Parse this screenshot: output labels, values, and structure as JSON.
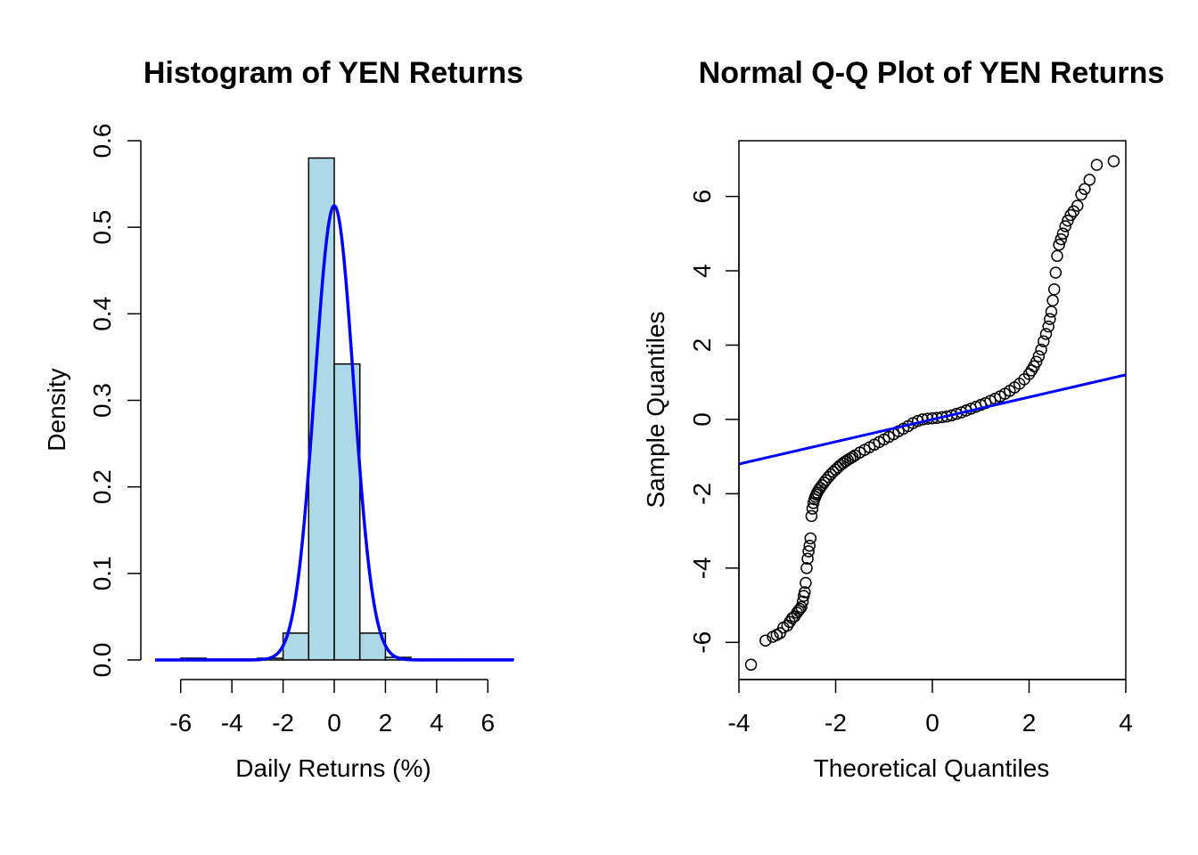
{
  "chart_data": [
    {
      "type": "bar",
      "subtype": "histogram-with-density-curve",
      "title": "Histogram of YEN Returns",
      "xlabel": "Daily Returns (%)",
      "ylabel": "Density",
      "xlim": [
        -7,
        7
      ],
      "ylim": [
        0,
        0.6
      ],
      "xticks": [
        -6,
        -4,
        -2,
        0,
        2,
        4,
        6
      ],
      "yticks": [
        0.0,
        0.1,
        0.2,
        0.3,
        0.4,
        0.5,
        0.6
      ],
      "xtick_labels": [
        "-6",
        "-4",
        "-2",
        "0",
        "2",
        "4",
        "6"
      ],
      "ytick_labels": [
        "0.0",
        "0.1",
        "0.2",
        "0.3",
        "0.4",
        "0.5",
        "0.6"
      ],
      "bins": [
        {
          "from": -6,
          "to": -5,
          "density": 0.002
        },
        {
          "from": -5,
          "to": -4,
          "density": 0.001
        },
        {
          "from": -4,
          "to": -3,
          "density": 0.001
        },
        {
          "from": -3,
          "to": -2,
          "density": 0.002
        },
        {
          "from": -2,
          "to": -1,
          "density": 0.031
        },
        {
          "from": -1,
          "to": 0,
          "density": 0.58
        },
        {
          "from": 0,
          "to": 1,
          "density": 0.342
        },
        {
          "from": 1,
          "to": 2,
          "density": 0.031
        },
        {
          "from": 2,
          "to": 3,
          "density": 0.003
        },
        {
          "from": 3,
          "to": 4,
          "density": 0.001
        },
        {
          "from": 4,
          "to": 5,
          "density": 0.001
        },
        {
          "from": 5,
          "to": 6,
          "density": 0.001
        },
        {
          "from": 6,
          "to": 7,
          "density": 0.001
        }
      ],
      "density_curve": {
        "type": "normal",
        "mean": 0.0,
        "sd": 0.76,
        "color": "#0000ff"
      },
      "bar_fill": "#add8e6",
      "bar_stroke": "#000000",
      "grid": false
    },
    {
      "type": "scatter",
      "subtype": "normal-qq-plot",
      "title": "Normal Q-Q Plot of YEN Returns",
      "xlabel": "Theoretical Quantiles",
      "ylabel": "Sample Quantiles",
      "xlim": [
        -4,
        4
      ],
      "ylim": [
        -7,
        7.5
      ],
      "xticks": [
        -4,
        -2,
        0,
        2,
        4
      ],
      "yticks": [
        -6,
        -4,
        -2,
        0,
        2,
        4,
        6
      ],
      "xtick_labels": [
        "-4",
        "-2",
        "0",
        "2",
        "4"
      ],
      "ytick_labels": [
        "-6",
        "-4",
        "-2",
        "0",
        "2",
        "4",
        "6"
      ],
      "points": [
        [
          -3.75,
          -6.6
        ],
        [
          -3.45,
          -5.95
        ],
        [
          -3.3,
          -5.85
        ],
        [
          -3.22,
          -5.8
        ],
        [
          -3.15,
          -5.75
        ],
        [
          -3.08,
          -5.6
        ],
        [
          -3.0,
          -5.55
        ],
        [
          -2.95,
          -5.45
        ],
        [
          -2.9,
          -5.35
        ],
        [
          -2.85,
          -5.3
        ],
        [
          -2.8,
          -5.2
        ],
        [
          -2.77,
          -5.15
        ],
        [
          -2.74,
          -5.1
        ],
        [
          -2.71,
          -5.05
        ],
        [
          -2.68,
          -4.9
        ],
        [
          -2.66,
          -4.75
        ],
        [
          -2.64,
          -4.65
        ],
        [
          -2.62,
          -4.4
        ],
        [
          -2.6,
          -4.0
        ],
        [
          -2.58,
          -3.75
        ],
        [
          -2.56,
          -3.55
        ],
        [
          -2.54,
          -3.4
        ],
        [
          -2.52,
          -3.2
        ],
        [
          -2.5,
          -2.6
        ],
        [
          -2.48,
          -2.4
        ],
        [
          -2.46,
          -2.25
        ],
        [
          -2.44,
          -2.15
        ],
        [
          -2.42,
          -2.08
        ],
        [
          -2.4,
          -2.02
        ],
        [
          -2.38,
          -1.97
        ],
        [
          -2.35,
          -1.9
        ],
        [
          -2.32,
          -1.84
        ],
        [
          -2.28,
          -1.77
        ],
        [
          -2.24,
          -1.7
        ],
        [
          -2.2,
          -1.63
        ],
        [
          -2.15,
          -1.55
        ],
        [
          -2.1,
          -1.48
        ],
        [
          -2.05,
          -1.41
        ],
        [
          -2.0,
          -1.35
        ],
        [
          -1.95,
          -1.29
        ],
        [
          -1.9,
          -1.23
        ],
        [
          -1.85,
          -1.18
        ],
        [
          -1.8,
          -1.13
        ],
        [
          -1.75,
          -1.09
        ],
        [
          -1.7,
          -1.05
        ],
        [
          -1.65,
          -1.01
        ],
        [
          -1.6,
          -0.97
        ],
        [
          -1.5,
          -0.89
        ],
        [
          -1.4,
          -0.82
        ],
        [
          -1.3,
          -0.75
        ],
        [
          -1.2,
          -0.68
        ],
        [
          -1.1,
          -0.61
        ],
        [
          -1.0,
          -0.54
        ],
        [
          -0.9,
          -0.47
        ],
        [
          -0.8,
          -0.4
        ],
        [
          -0.7,
          -0.32
        ],
        [
          -0.6,
          -0.25
        ],
        [
          -0.5,
          -0.18
        ],
        [
          -0.4,
          -0.1
        ],
        [
          -0.3,
          -0.04
        ],
        [
          -0.2,
          0.0
        ],
        [
          -0.1,
          0.02
        ],
        [
          0.0,
          0.03
        ],
        [
          0.1,
          0.04
        ],
        [
          0.2,
          0.06
        ],
        [
          0.3,
          0.08
        ],
        [
          0.4,
          0.11
        ],
        [
          0.5,
          0.15
        ],
        [
          0.6,
          0.19
        ],
        [
          0.7,
          0.24
        ],
        [
          0.8,
          0.29
        ],
        [
          0.9,
          0.34
        ],
        [
          1.0,
          0.39
        ],
        [
          1.1,
          0.44
        ],
        [
          1.2,
          0.5
        ],
        [
          1.3,
          0.56
        ],
        [
          1.4,
          0.62
        ],
        [
          1.5,
          0.69
        ],
        [
          1.6,
          0.77
        ],
        [
          1.7,
          0.86
        ],
        [
          1.8,
          0.96
        ],
        [
          1.9,
          1.08
        ],
        [
          2.0,
          1.22
        ],
        [
          2.05,
          1.32
        ],
        [
          2.1,
          1.43
        ],
        [
          2.15,
          1.55
        ],
        [
          2.2,
          1.7
        ],
        [
          2.25,
          1.88
        ],
        [
          2.3,
          2.1
        ],
        [
          2.35,
          2.3
        ],
        [
          2.4,
          2.5
        ],
        [
          2.43,
          2.7
        ],
        [
          2.46,
          2.9
        ],
        [
          2.49,
          3.2
        ],
        [
          2.52,
          3.5
        ],
        [
          2.55,
          3.95
        ],
        [
          2.58,
          4.4
        ],
        [
          2.62,
          4.7
        ],
        [
          2.66,
          4.85
        ],
        [
          2.7,
          5.0
        ],
        [
          2.75,
          5.2
        ],
        [
          2.8,
          5.35
        ],
        [
          2.86,
          5.5
        ],
        [
          2.92,
          5.6
        ],
        [
          3.0,
          5.75
        ],
        [
          3.08,
          6.05
        ],
        [
          3.15,
          6.2
        ],
        [
          3.25,
          6.45
        ],
        [
          3.4,
          6.85
        ],
        [
          3.75,
          6.95
        ]
      ],
      "reference_line": {
        "intercept": 0.0,
        "slope": 0.3,
        "color": "#0000ff"
      },
      "marker": "open-circle",
      "grid": false
    }
  ]
}
